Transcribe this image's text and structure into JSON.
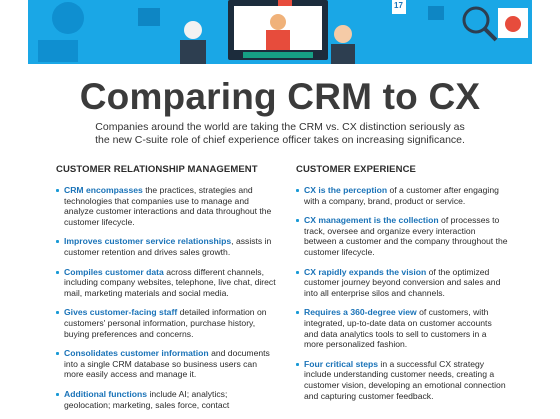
{
  "title": "Comparing CRM to CX",
  "subtitle": "Companies around the world are taking the CRM vs. CX distinction seriously as the new C-suite role of chief experience officer takes on increasing significance.",
  "banner": {
    "calendar_number": "17"
  },
  "colors": {
    "accent": "#1a73b8",
    "banner": "#1aa7e6"
  },
  "left": {
    "heading": "CUSTOMER RELATIONSHIP MANAGEMENT",
    "items": [
      {
        "lead": "CRM encompasses",
        "rest": " the practices, strategies and technologies that companies use to manage and analyze customer interactions and data throughout the customer lifecycle."
      },
      {
        "lead": "Improves customer service relationships",
        "rest": ", assists in customer retention and drives sales growth."
      },
      {
        "lead": "Compiles customer data",
        "rest": " across different channels, including company websites, telephone, live chat, direct mail, marketing materials and social media."
      },
      {
        "lead": "Gives customer-facing staff",
        "rest": " detailed information on customers' personal information, purchase history, buying preferences and concerns."
      },
      {
        "lead": "Consolidates customer information",
        "rest": " and documents into a single CRM database so business users can more easily access and manage it."
      },
      {
        "lead": "Additional functions",
        "rest": " include AI; analytics; geolocation; marketing, sales force, contact"
      }
    ]
  },
  "right": {
    "heading": "CUSTOMER EXPERIENCE",
    "items": [
      {
        "lead": "CX is the perception",
        "rest": " of a customer after engaging with a company, brand, product or service."
      },
      {
        "lead": "CX management is the collection",
        "rest": " of processes to track, oversee and organize every interaction between a customer and the company throughout the customer lifecycle."
      },
      {
        "lead": "CX rapidly expands the vision",
        "rest": " of the optimized customer journey beyond conversion and sales and into all enterprise silos and channels."
      },
      {
        "lead": "Requires a 360-degree view",
        "rest": " of customers, with integrated, up-to-date data on customer accounts and data analytics tools to sell to customers in a more personalized fashion."
      },
      {
        "lead": "Four critical steps",
        "rest": " in a successful CX strategy include understanding customer needs, creating a customer vision, developing an emotional connection and capturing customer feedback."
      }
    ]
  }
}
